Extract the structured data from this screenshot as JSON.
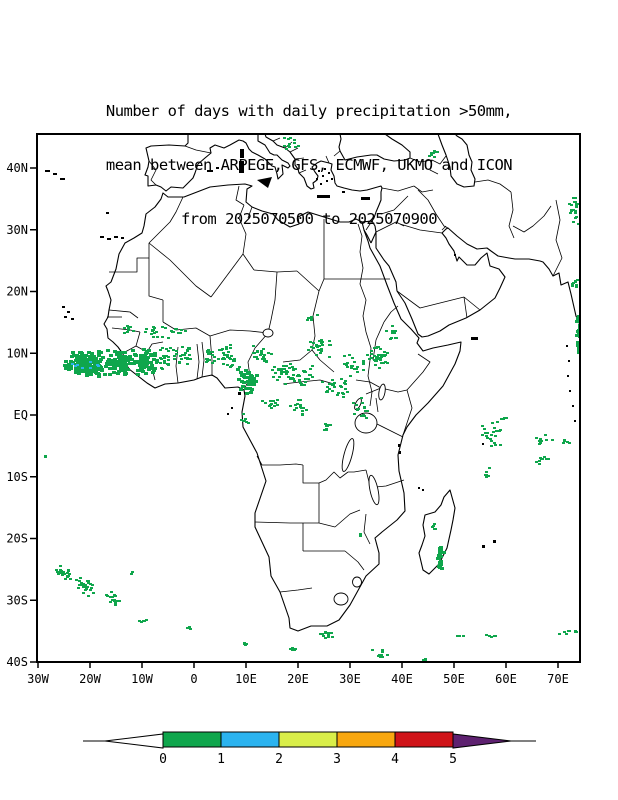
{
  "title": {
    "line1": "Number of days with daily precipitation >50mm,",
    "line2": "mean between ARPEGE, GFS, ECMWF, UKMO and ICON",
    "line3": "from 2025070500 to 2025070900"
  },
  "map": {
    "axes": {
      "lat_ticks": [
        "40N",
        "30N",
        "20N",
        "10N",
        "EQ",
        "10S",
        "20S",
        "30S",
        "40S"
      ],
      "lon_ticks": [
        "30W",
        "20W",
        "10W",
        "0",
        "10E",
        "20E",
        "30E",
        "40E",
        "50E",
        "60E",
        "70E"
      ]
    }
  },
  "colorbar": {
    "labels": [
      "0",
      "1",
      "2",
      "3",
      "4",
      "5"
    ],
    "segment_colors": [
      "#0fa64c",
      "#2bb3ef",
      "#d9ee49",
      "#f8a70f",
      "#cf1318"
    ],
    "under_arrow_color": "#ffffff",
    "over_arrow_color": "#5e2170"
  },
  "chart_data": {
    "type": "heatmap",
    "title": "Number of days with daily precipitation >50mm, mean between ARPEGE, GFS, ECMWF, UKMO and ICON from 2025070500 to 2025070900",
    "variable": "number of days with daily precipitation >50mm",
    "units": "days",
    "models": [
      "ARPEGE",
      "GFS",
      "ECMWF",
      "UKMO",
      "ICON"
    ],
    "period": {
      "from": "2025070500",
      "to": "2025070900"
    },
    "extent": {
      "lon_min": -30,
      "lon_max": 74.4,
      "lat_min": -40,
      "lat_max": 45.3
    },
    "legend_levels": [
      0,
      1,
      2,
      3,
      4,
      5
    ],
    "legend_colors": [
      "#ffffff",
      "#0fa64c",
      "#2bb3ef",
      "#d9ee49",
      "#f8a70f",
      "#cf1318",
      "#5e2170"
    ],
    "grid": false,
    "legend_position": "bottom",
    "clusters": [
      {
        "lon": -21,
        "lat": 8.5,
        "dlon": 4.5,
        "dlat": 2.2,
        "n": 170,
        "s": 4
      },
      {
        "lon": -14.5,
        "lat": 8.8,
        "dlon": 3,
        "dlat": 2.2,
        "n": 90,
        "s": 4
      },
      {
        "lon": -21,
        "lat": 8.5,
        "dlon": 3.5,
        "dlat": 1.2,
        "n": 8,
        "level": 2
      },
      {
        "lon": -9.5,
        "lat": 8.8,
        "dlon": 2.5,
        "dlat": 2.2,
        "n": 55,
        "s": 4
      },
      {
        "lon": -5.5,
        "lat": 9.5,
        "dlon": 2.5,
        "dlat": 2,
        "n": 30
      },
      {
        "lon": -1.5,
        "lat": 10,
        "dlon": 2,
        "dlat": 1.8,
        "n": 20
      },
      {
        "lon": -13,
        "lat": 14.2,
        "dlon": 1.5,
        "dlat": 1,
        "n": 8
      },
      {
        "lon": -8,
        "lat": 13.2,
        "dlon": 3,
        "dlat": 1.5,
        "n": 16
      },
      {
        "lon": -3,
        "lat": 13.8,
        "dlon": 2,
        "dlat": 1,
        "n": 10
      },
      {
        "lon": 2.5,
        "lat": 9.5,
        "dlon": 2,
        "dlat": 1.8,
        "n": 18
      },
      {
        "lon": 6.5,
        "lat": 9.5,
        "dlon": 2.8,
        "dlat": 2,
        "n": 30
      },
      {
        "lon": 10,
        "lat": 5.8,
        "dlon": 2.2,
        "dlat": 2.2,
        "n": 40,
        "s": 4
      },
      {
        "lon": 12.8,
        "lat": 9.8,
        "dlon": 2.2,
        "dlat": 1.8,
        "n": 22
      },
      {
        "lon": 16.5,
        "lat": 7,
        "dlon": 2.8,
        "dlat": 2.2,
        "n": 28
      },
      {
        "lon": 21,
        "lat": 6.5,
        "dlon": 2.8,
        "dlat": 2.2,
        "n": 28
      },
      {
        "lon": 24,
        "lat": 11.3,
        "dlon": 3,
        "dlat": 2,
        "n": 24
      },
      {
        "lon": 27,
        "lat": 4.5,
        "dlon": 3,
        "dlat": 2.2,
        "n": 28
      },
      {
        "lon": 30.5,
        "lat": 8,
        "dlon": 2.5,
        "dlat": 2,
        "n": 22
      },
      {
        "lon": 32,
        "lat": 1.5,
        "dlon": 2,
        "dlat": 2,
        "n": 16
      },
      {
        "lon": 35.5,
        "lat": 10,
        "dlon": 2.5,
        "dlat": 2.8,
        "n": 38
      },
      {
        "lon": 38,
        "lat": 13.5,
        "dlon": 1.5,
        "dlat": 1.3,
        "n": 10
      },
      {
        "lon": 22.5,
        "lat": 16,
        "dlon": 1.5,
        "dlat": 1,
        "n": 6
      },
      {
        "lon": 20,
        "lat": 1.5,
        "dlon": 2.8,
        "dlat": 1.8,
        "n": 15
      },
      {
        "lon": 14.5,
        "lat": 2,
        "dlon": 2,
        "dlat": 1.8,
        "n": 12
      },
      {
        "lon": 9.7,
        "lat": -0.8,
        "dlon": 1,
        "dlat": 1.3,
        "n": 7
      },
      {
        "lon": 25.5,
        "lat": -1.5,
        "dlon": 2,
        "dlat": 1.5,
        "n": 8
      },
      {
        "lon": 31.9,
        "lat": -19.4,
        "dlon": 0.3,
        "dlat": 0.4,
        "n": 3
      },
      {
        "lon": 18.3,
        "lat": 44,
        "dlon": 1.8,
        "dlat": 1.2,
        "n": 12
      },
      {
        "lon": 45.5,
        "lat": 42.3,
        "dlon": 1.5,
        "dlat": 1.2,
        "n": 10
      },
      {
        "lon": 73,
        "lat": 33.5,
        "dlon": 1.5,
        "dlat": 2.8,
        "n": 20
      },
      {
        "lon": 73,
        "lat": 21.5,
        "dlon": 0.8,
        "dlat": 1.5,
        "n": 8
      },
      {
        "lon": 73.8,
        "lat": 13.5,
        "dlon": 0.7,
        "dlat": 3.5,
        "n": 28,
        "s": 4
      },
      {
        "lon": 57,
        "lat": -2.5,
        "dlon": 2.5,
        "dlat": 1.8,
        "n": 18
      },
      {
        "lon": 59.5,
        "lat": -0.5,
        "dlon": 1,
        "dlat": 0.6,
        "n": 5
      },
      {
        "lon": 67,
        "lat": -4,
        "dlon": 1.8,
        "dlat": 1.2,
        "n": 9,
        "ang": 30
      },
      {
        "lon": 56,
        "lat": -9,
        "dlon": 0.8,
        "dlat": 1.2,
        "n": 6
      },
      {
        "lon": 57.5,
        "lat": -4.6,
        "dlon": 1.5,
        "dlat": 0.5,
        "n": 5
      },
      {
        "lon": 66.5,
        "lat": -7,
        "dlon": 1.5,
        "dlat": 1.5,
        "n": 9,
        "ang": 45
      },
      {
        "lon": 71,
        "lat": -4.2,
        "dlon": 1.3,
        "dlat": 0.5,
        "n": 5
      },
      {
        "lon": 47,
        "lat": -22.5,
        "dlon": 0.6,
        "dlat": 2.6,
        "n": 20,
        "s": 4
      },
      {
        "lon": 45.8,
        "lat": -18,
        "dlon": 0.5,
        "dlat": 1,
        "n": 5
      },
      {
        "lon": -25.5,
        "lat": -25.5,
        "dlon": 2,
        "dlat": 1.2,
        "n": 26,
        "ang": 35
      },
      {
        "lon": -21,
        "lat": -27.5,
        "dlon": 2.5,
        "dlat": 1.3,
        "n": 30,
        "ang": 35
      },
      {
        "lon": -16,
        "lat": -29.5,
        "dlon": 2,
        "dlat": 1,
        "n": 18,
        "ang": 35
      },
      {
        "lon": -12.2,
        "lat": -25.2,
        "dlon": 0.4,
        "dlat": 0.4,
        "n": 3
      },
      {
        "lon": -10,
        "lat": -33,
        "dlon": 1.5,
        "dlat": 0.3,
        "n": 6
      },
      {
        "lon": -1.3,
        "lat": -34.2,
        "dlon": 0.6,
        "dlat": 0.3,
        "n": 3
      },
      {
        "lon": 9.6,
        "lat": -36.8,
        "dlon": 1,
        "dlat": 0.3,
        "n": 4
      },
      {
        "lon": 19,
        "lat": -37.6,
        "dlon": 1.5,
        "dlat": 0.3,
        "n": 6
      },
      {
        "lon": 25.2,
        "lat": -35.2,
        "dlon": 1.5,
        "dlat": 0.7,
        "n": 12
      },
      {
        "lon": 35.5,
        "lat": -38.5,
        "dlon": 2,
        "dlat": 1,
        "n": 10,
        "ang": 40
      },
      {
        "lon": 44.5,
        "lat": -39.5,
        "dlon": 1,
        "dlat": 0.8,
        "n": 8,
        "ang": 50
      },
      {
        "lon": 51,
        "lat": -35.5,
        "dlon": 1,
        "dlat": 0.3,
        "n": 4
      },
      {
        "lon": 56.5,
        "lat": -35.5,
        "dlon": 1.3,
        "dlat": 0.3,
        "n": 5
      },
      {
        "lon": 72,
        "lat": -34.8,
        "dlon": 2.5,
        "dlat": 0.4,
        "n": 8
      },
      {
        "lon": -28.8,
        "lat": -6.5,
        "dlon": 0.3,
        "dlat": 0.3,
        "n": 2
      }
    ]
  }
}
